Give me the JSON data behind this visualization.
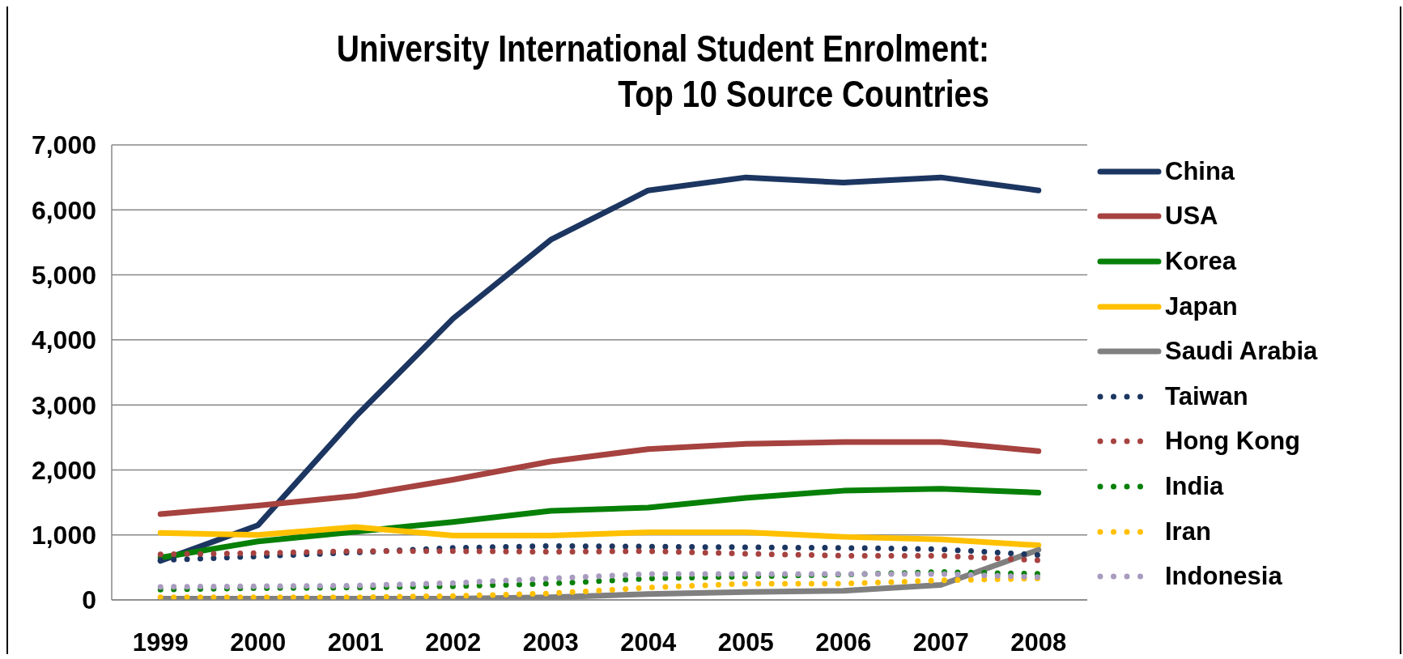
{
  "chart_data": {
    "type": "line",
    "title": "University International Student Enrolment: Top 10 Source Countries",
    "categories": [
      "1999",
      "2000",
      "2001",
      "2002",
      "2003",
      "2004",
      "2005",
      "2006",
      "2007",
      "2008"
    ],
    "series": [
      {
        "name": "China",
        "color": "#1c3661",
        "line_style": "solid",
        "values": [
          600,
          1150,
          2820,
          4330,
          5540,
          6300,
          6500,
          6420,
          6500,
          6300
        ]
      },
      {
        "name": "USA",
        "color": "#a6423f",
        "line_style": "solid",
        "values": [
          1320,
          1450,
          1600,
          1850,
          2130,
          2320,
          2400,
          2430,
          2430,
          2290
        ]
      },
      {
        "name": "Korea",
        "color": "#078007",
        "line_style": "solid",
        "values": [
          650,
          900,
          1050,
          1200,
          1370,
          1420,
          1570,
          1680,
          1710,
          1650
        ]
      },
      {
        "name": "Japan",
        "color": "#ffc000",
        "line_style": "solid",
        "values": [
          1030,
          1000,
          1120,
          990,
          990,
          1040,
          1040,
          970,
          930,
          840
        ]
      },
      {
        "name": "Saudi Arabia",
        "color": "#808080",
        "line_style": "solid",
        "values": [
          20,
          20,
          20,
          20,
          40,
          90,
          120,
          140,
          230,
          770
        ]
      },
      {
        "name": "Taiwan",
        "color": "#1c3661",
        "line_style": "dotted",
        "values": [
          610,
          670,
          730,
          800,
          830,
          820,
          810,
          800,
          780,
          690
        ]
      },
      {
        "name": "Hong Kong",
        "color": "#a6423f",
        "line_style": "dotted",
        "values": [
          700,
          720,
          750,
          750,
          740,
          750,
          710,
          680,
          680,
          610
        ]
      },
      {
        "name": "India",
        "color": "#078007",
        "line_style": "dotted",
        "values": [
          160,
          180,
          190,
          210,
          250,
          330,
          360,
          390,
          430,
          400
        ]
      },
      {
        "name": "Iran",
        "color": "#ffc000",
        "line_style": "dotted",
        "values": [
          40,
          40,
          40,
          60,
          100,
          190,
          250,
          250,
          300,
          330
        ]
      },
      {
        "name": "Indonesia",
        "color": "#a89bbf",
        "line_style": "dotted",
        "values": [
          200,
          210,
          220,
          260,
          330,
          400,
          400,
          400,
          400,
          350
        ]
      }
    ],
    "ylim": [
      0,
      7000
    ],
    "yticks": [
      {
        "value": 0,
        "label": "0"
      },
      {
        "value": 1000,
        "label": "1,000"
      },
      {
        "value": 2000,
        "label": "2,000"
      },
      {
        "value": 3000,
        "label": "3,000"
      },
      {
        "value": 4000,
        "label": "4,000"
      },
      {
        "value": 5000,
        "label": "5,000"
      },
      {
        "value": 6000,
        "label": "6,000"
      },
      {
        "value": 7000,
        "label": "7,000"
      }
    ],
    "grid": "y",
    "legend": "right"
  }
}
